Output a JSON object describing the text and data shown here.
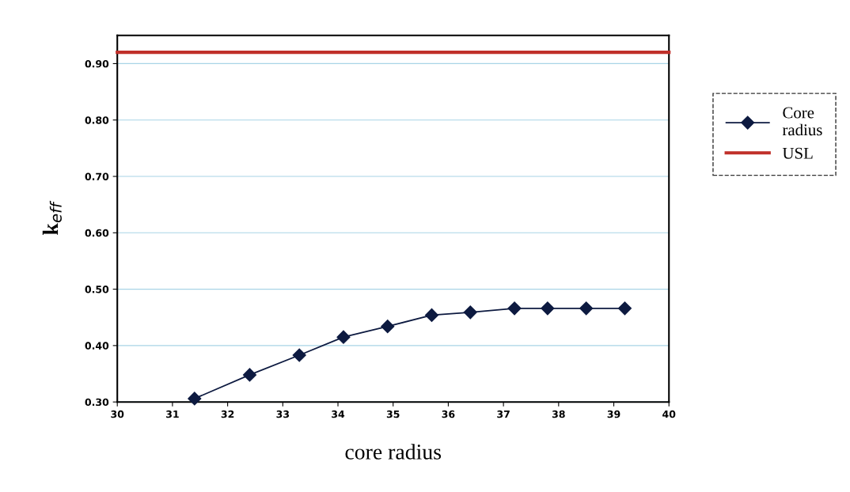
{
  "chart_data": {
    "type": "line",
    "xlabel": "core radius",
    "ylabel": "k$_{eff}$",
    "xlim": [
      30,
      40
    ],
    "xticks": [
      30,
      31,
      32,
      33,
      34,
      35,
      36,
      37,
      38,
      39,
      40
    ],
    "ylim": [
      0.3,
      0.95
    ],
    "yticks": [
      {
        "value": 0.3,
        "label": "0.30"
      },
      {
        "value": 0.4,
        "label": "0.40"
      },
      {
        "value": 0.5,
        "label": "0.50"
      },
      {
        "value": 0.6,
        "label": "0.60"
      },
      {
        "value": 0.7,
        "label": "0.70"
      },
      {
        "value": 0.8,
        "label": "0.80"
      },
      {
        "value": 0.9,
        "label": "0.90"
      }
    ],
    "grid": "y",
    "legend": "right",
    "series": [
      {
        "name": "Core\nradius",
        "color": "#0d1a40",
        "marker": "diamond",
        "x": [
          31.4,
          32.4,
          33.3,
          34.1,
          34.9,
          35.7,
          36.4,
          37.2,
          37.8,
          38.5,
          39.2
        ],
        "values": [
          0.306,
          0.348,
          0.383,
          0.415,
          0.434,
          0.454,
          0.459,
          0.466,
          0.466,
          0.466,
          0.466
        ]
      },
      {
        "name": "USL",
        "color": "#c0302a",
        "marker": "none",
        "x": [
          30,
          40
        ],
        "values": [
          0.92,
          0.92
        ]
      }
    ]
  }
}
